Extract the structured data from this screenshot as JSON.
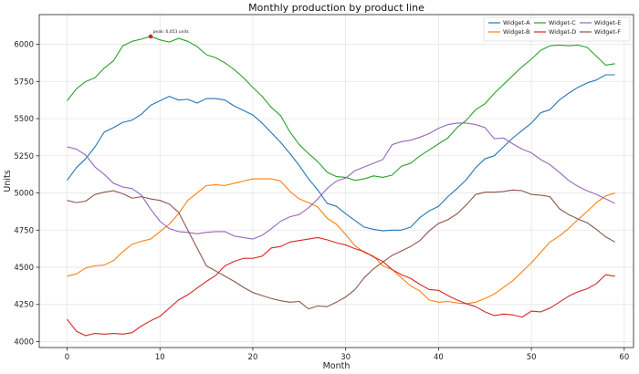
{
  "chart_data": {
    "type": "line",
    "title": "Monthly production by product line",
    "xlabel": "Month",
    "ylabel": "Units",
    "xlim": [
      -3,
      61
    ],
    "ylim": [
      3960,
      6200
    ],
    "x_ticks": [
      0,
      10,
      20,
      30,
      40,
      50,
      60
    ],
    "y_ticks": [
      4000,
      4250,
      4500,
      4750,
      5000,
      5250,
      5500,
      5750,
      6000
    ],
    "y_tick_labels": [
      "4000",
      "4250",
      "4500",
      "4750",
      "5000",
      "5250",
      "5500",
      "5750",
      "6000"
    ],
    "grid": true,
    "legend_position": "top-right",
    "legend_columns": 3,
    "x": [
      0,
      1,
      2,
      3,
      4,
      5,
      6,
      7,
      8,
      9,
      10,
      11,
      12,
      13,
      14,
      15,
      16,
      17,
      18,
      19,
      20,
      21,
      22,
      23,
      24,
      25,
      26,
      27,
      28,
      29,
      30,
      31,
      32,
      33,
      34,
      35,
      36,
      37,
      38,
      39,
      40,
      41,
      42,
      43,
      44,
      45,
      46,
      47,
      48,
      49,
      50,
      51,
      52,
      53,
      54,
      55,
      56,
      57,
      58,
      59
    ],
    "series": [
      {
        "name": "Widget-A",
        "color": "#1f77b4",
        "values": [
          5085,
          5170,
          5230,
          5310,
          5410,
          5440,
          5475,
          5490,
          5530,
          5590,
          5620,
          5650,
          5625,
          5630,
          5605,
          5635,
          5635,
          5625,
          5585,
          5555,
          5525,
          5470,
          5405,
          5340,
          5265,
          5185,
          5095,
          5020,
          4930,
          4910,
          4860,
          4815,
          4770,
          4755,
          4745,
          4750,
          4750,
          4770,
          4835,
          4880,
          4910,
          4975,
          5030,
          5090,
          5170,
          5230,
          5250,
          5310,
          5370,
          5420,
          5470,
          5540,
          5560,
          5625,
          5670,
          5710,
          5740,
          5760,
          5795,
          5795
        ]
      },
      {
        "name": "Widget-B",
        "color": "#ff7f0e",
        "values": [
          4440,
          4455,
          4495,
          4510,
          4515,
          4545,
          4605,
          4655,
          4675,
          4690,
          4740,
          4790,
          4860,
          4950,
          5000,
          5050,
          5055,
          5050,
          5065,
          5080,
          5095,
          5095,
          5095,
          5080,
          5010,
          4960,
          4935,
          4905,
          4830,
          4790,
          4720,
          4645,
          4600,
          4575,
          4510,
          4485,
          4430,
          4375,
          4340,
          4280,
          4265,
          4270,
          4260,
          4255,
          4265,
          4290,
          4320,
          4365,
          4410,
          4470,
          4530,
          4600,
          4670,
          4710,
          4760,
          4820,
          4875,
          4935,
          4980,
          5000
        ]
      },
      {
        "name": "Widget-C",
        "color": "#2ca02c",
        "values": [
          5620,
          5700,
          5750,
          5775,
          5840,
          5890,
          5990,
          6020,
          6035,
          6053,
          6030,
          6015,
          6040,
          6020,
          5985,
          5930,
          5910,
          5875,
          5830,
          5775,
          5710,
          5650,
          5575,
          5520,
          5410,
          5325,
          5265,
          5210,
          5140,
          5110,
          5105,
          5085,
          5095,
          5115,
          5105,
          5120,
          5180,
          5200,
          5250,
          5290,
          5330,
          5370,
          5440,
          5490,
          5560,
          5600,
          5670,
          5730,
          5790,
          5850,
          5900,
          5960,
          5990,
          5995,
          5990,
          5995,
          5980,
          5920,
          5860,
          5870
        ]
      },
      {
        "name": "Widget-D",
        "color": "#d62728",
        "values": [
          4150,
          4070,
          4040,
          4055,
          4050,
          4055,
          4050,
          4060,
          4105,
          4140,
          4170,
          4225,
          4280,
          4315,
          4360,
          4405,
          4445,
          4510,
          4540,
          4560,
          4560,
          4575,
          4630,
          4640,
          4670,
          4680,
          4690,
          4700,
          4685,
          4665,
          4650,
          4625,
          4605,
          4570,
          4540,
          4485,
          4450,
          4425,
          4385,
          4350,
          4345,
          4310,
          4280,
          4255,
          4235,
          4200,
          4175,
          4185,
          4180,
          4165,
          4205,
          4200,
          4225,
          4265,
          4305,
          4335,
          4355,
          4390,
          4450,
          4440
        ]
      },
      {
        "name": "Widget-E",
        "color": "#9467bd",
        "values": [
          5310,
          5295,
          5255,
          5175,
          5125,
          5065,
          5040,
          5030,
          4985,
          4890,
          4810,
          4760,
          4740,
          4735,
          4725,
          4735,
          4740,
          4740,
          4710,
          4700,
          4690,
          4715,
          4760,
          4810,
          4840,
          4855,
          4900,
          4960,
          5030,
          5080,
          5100,
          5150,
          5175,
          5200,
          5225,
          5325,
          5345,
          5355,
          5375,
          5400,
          5435,
          5460,
          5470,
          5470,
          5460,
          5440,
          5365,
          5370,
          5330,
          5295,
          5270,
          5225,
          5190,
          5140,
          5085,
          5045,
          5015,
          4990,
          4960,
          4930
        ]
      },
      {
        "name": "Widget-F",
        "color": "#8c564b",
        "values": [
          4950,
          4935,
          4945,
          4990,
          5005,
          5015,
          4995,
          4965,
          4975,
          4960,
          4950,
          4925,
          4870,
          4750,
          4630,
          4510,
          4475,
          4440,
          4405,
          4365,
          4330,
          4310,
          4290,
          4275,
          4265,
          4270,
          4220,
          4240,
          4235,
          4265,
          4300,
          4350,
          4430,
          4490,
          4535,
          4580,
          4610,
          4640,
          4680,
          4745,
          4795,
          4820,
          4860,
          4920,
          4990,
          5005,
          5005,
          5010,
          5020,
          5015,
          4990,
          4985,
          4975,
          4895,
          4855,
          4825,
          4800,
          4755,
          4705,
          4670
        ]
      }
    ],
    "annotations": [
      {
        "text": "peak: 6,053 units",
        "x": 9,
        "y": 6053,
        "series": "Widget-C",
        "marker_color": "#d62728"
      }
    ]
  }
}
